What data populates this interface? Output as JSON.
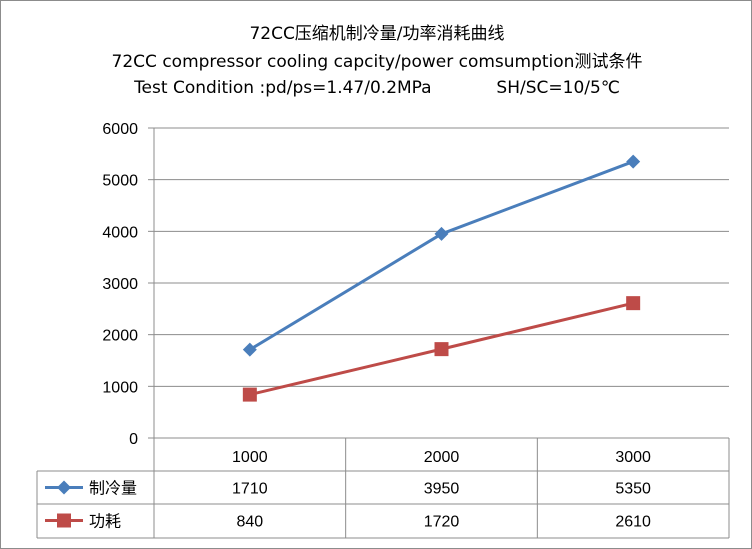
{
  "title_lines": [
    "72CC压缩机制冷量/功率消耗曲线",
    "72CC compressor cooling capcity/power comsumption测试条件",
    "Test Condition :pd/ps=1.47/0.2MPa            SH/SC=10/5℃"
  ],
  "chart_data": {
    "type": "line",
    "title": "72CC压缩机制冷量/功率消耗曲线",
    "subtitle": "72CC compressor cooling capcity/power comsumption测试条件 / Test Condition :pd/ps=1.47/0.2MPa  SH/SC=10/5℃",
    "xlabel": "",
    "ylabel": "",
    "categories": [
      "1000",
      "2000",
      "3000"
    ],
    "ylim": [
      0,
      6000
    ],
    "yticks": [
      "6000",
      "5000",
      "4000",
      "3000",
      "2000",
      "1000",
      "0"
    ],
    "grid": "horizontal",
    "legend": "data table below plot",
    "series": [
      {
        "name": "制冷量",
        "values": [
          1710,
          3950,
          5350
        ],
        "labels": [
          "1710",
          "3950",
          "5350"
        ],
        "color": "#4a7ebb",
        "marker": "diamond"
      },
      {
        "name": "功耗",
        "values": [
          840,
          1720,
          2610
        ],
        "labels": [
          "840",
          "1720",
          "2610"
        ],
        "color": "#be4b48",
        "marker": "square"
      }
    ]
  }
}
